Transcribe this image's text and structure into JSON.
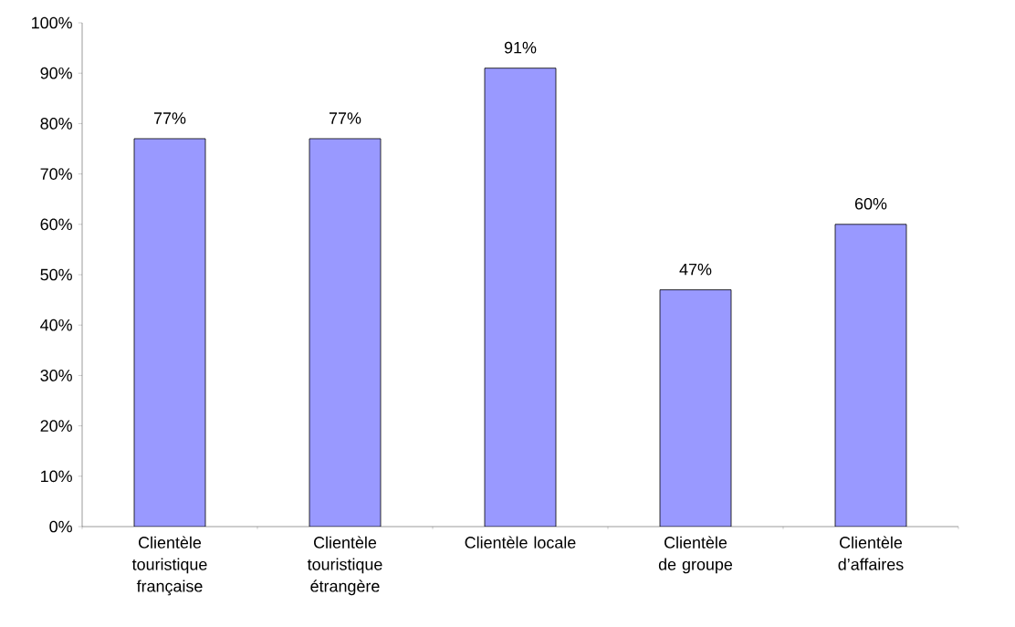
{
  "chart_data": {
    "type": "bar",
    "categories": [
      "Clientèle touristique française",
      "Clientèle touristique étrangère",
      "Clientèle locale",
      "Clientèle de groupe",
      "Clientèle d’affaires"
    ],
    "values": [
      77,
      77,
      91,
      47,
      60
    ],
    "value_labels": [
      "77%",
      "77%",
      "91%",
      "47%",
      "60%"
    ],
    "color": "#9999ff",
    "ylim": [
      0,
      100
    ],
    "yticks": [
      {
        "value": 0,
        "label": "0%"
      },
      {
        "value": 10,
        "label": "10%"
      },
      {
        "value": 20,
        "label": "20%"
      },
      {
        "value": 30,
        "label": "30%"
      },
      {
        "value": 40,
        "label": "40%"
      },
      {
        "value": 50,
        "label": "50%"
      },
      {
        "value": 60,
        "label": "60%"
      },
      {
        "value": 70,
        "label": "70%"
      },
      {
        "value": 80,
        "label": "80%"
      },
      {
        "value": 90,
        "label": "90%"
      },
      {
        "value": 100,
        "label": "100%"
      }
    ],
    "grid": false
  }
}
